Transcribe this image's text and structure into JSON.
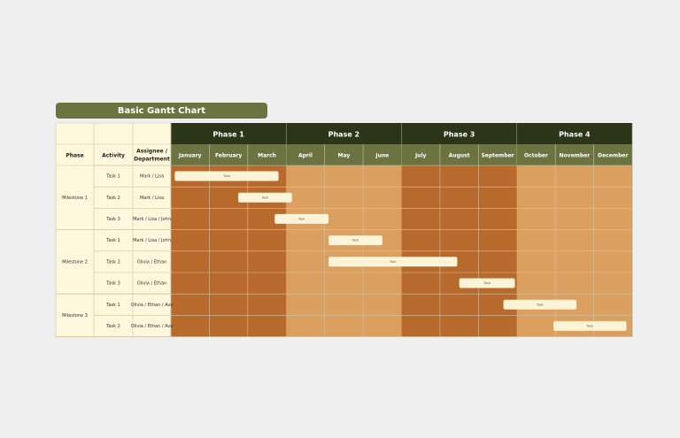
{
  "title": "Basic Gantt Chart",
  "headers": {
    "phase": "Phase",
    "activity": "Activity",
    "assignee_line1": "Assignee /",
    "assignee_line2": "Department"
  },
  "phases": [
    "Phase 1",
    "Phase 2",
    "Phase 3",
    "Phase 4"
  ],
  "months": [
    "January",
    "February",
    "March",
    "April",
    "May",
    "June",
    "July",
    "August",
    "September",
    "October",
    "November",
    "December"
  ],
  "colors": {
    "header_dark": "#2b3517",
    "header_olive": "#6b7440",
    "info_bg": "#fdf7dc",
    "odd_phase": "#b8692c",
    "even_phase": "#dba060",
    "bar": "#fdf3d6",
    "grid": "#cfc6a6"
  },
  "chart_data": {
    "type": "table",
    "title": "Basic Gantt Chart",
    "x_unit": "month",
    "milestones": [
      {
        "name": "Milestone 1",
        "tasks": [
          {
            "activity": "Task 1",
            "assignee": "Mark / Lisa",
            "label": "Task",
            "start": 0.1,
            "end": 2.8
          },
          {
            "activity": "Task 2",
            "assignee": "Mark / Lisa",
            "label": "Task",
            "start": 1.75,
            "end": 3.15
          },
          {
            "activity": "Task 3",
            "assignee": "Mark / Lisa / John",
            "label": "Task",
            "start": 2.7,
            "end": 4.1
          }
        ]
      },
      {
        "name": "Milestone 2",
        "tasks": [
          {
            "activity": "Task 1",
            "assignee": "Mark / Lisa / John",
            "label": "Task",
            "start": 4.1,
            "end": 5.5
          },
          {
            "activity": "Task 2",
            "assignee": "Olivia / Ethan",
            "label": "Task",
            "start": 4.1,
            "end": 7.45
          },
          {
            "activity": "Task 3",
            "assignee": "Olivia / Ethan",
            "label": "Task",
            "start": 7.5,
            "end": 8.95
          }
        ]
      },
      {
        "name": "Milestone 3",
        "tasks": [
          {
            "activity": "Task 1",
            "assignee": "Olivia / Ethan / Ava",
            "label": "Task",
            "start": 8.65,
            "end": 10.55
          },
          {
            "activity": "Task 2",
            "assignee": "Olivia / Ethan / Ava",
            "label": "Task",
            "start": 9.95,
            "end": 11.85
          }
        ]
      }
    ]
  }
}
